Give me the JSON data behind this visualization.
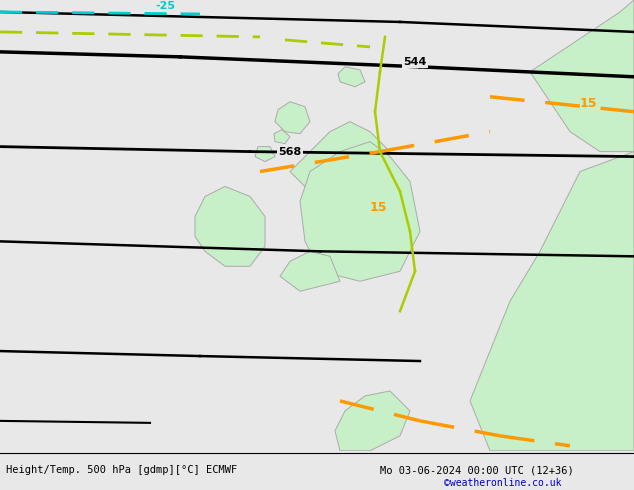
{
  "title_left": "Height/Temp. 500 hPa [gdmp][°C] ECMWF",
  "title_right": "Mo 03-06-2024 00:00 UTC (12+36)",
  "credit": "©weatheronline.co.uk",
  "bg_color": "#e8e8e8",
  "land_color": "#c8f0c8",
  "border_color": "#aaaaaa",
  "geopotential_color": "#000000",
  "temp_cyan_color": "#00cccc",
  "temp_yellow_color": "#aacc00",
  "temp_orange_color": "#ff9900",
  "label_568": "568",
  "label_544": "544",
  "label_neg25": "-25",
  "label_15": "15",
  "label_15b": "15"
}
